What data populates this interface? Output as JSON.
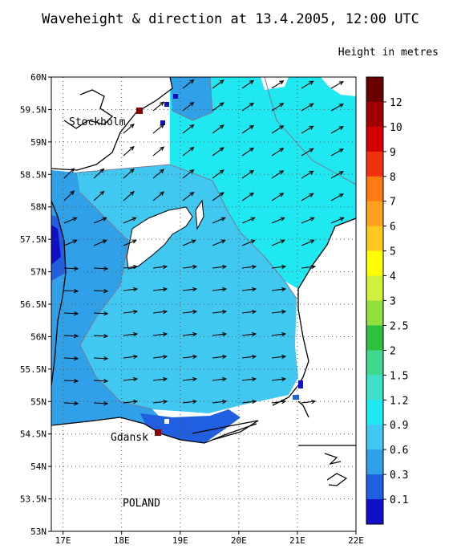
{
  "title": "Waveheight & direction at 13.4.2005, 12:00 UTC",
  "legend_title": "Height in metres",
  "map": {
    "lat_range": [
      53,
      60
    ],
    "lon_range": [
      16.8,
      22
    ],
    "lat_ticks": [
      "60N",
      "59.5N",
      "59N",
      "58.5N",
      "58N",
      "57.5N",
      "57N",
      "56.5N",
      "56N",
      "55.5N",
      "55N",
      "54.5N",
      "54N",
      "53.5N",
      "53N"
    ],
    "lon_ticks": [
      "17E",
      "18E",
      "19E",
      "20E",
      "21E",
      "22E"
    ],
    "places": [
      {
        "name": "Stockholm",
        "lon": 18.06,
        "lat": 59.33
      },
      {
        "name": "Gdansk",
        "lon": 18.65,
        "lat": 54.35
      },
      {
        "name": "POLAND",
        "lon": 18.4,
        "lat": 53.5
      }
    ],
    "wave_direction": "north-east to east",
    "colors": {
      "land": "#ffffff",
      "coast": "#000000",
      "grid": "#555555"
    }
  },
  "colorbar": {
    "labels": [
      "12",
      "10",
      "9",
      "8",
      "7",
      "6",
      "5",
      "4",
      "3",
      "2.5",
      "2",
      "1.5",
      "1.2",
      "0.9",
      "0.6",
      "0.3",
      "0.1"
    ],
    "colors": [
      "#6a0000",
      "#a00000",
      "#d40000",
      "#f03010",
      "#ff7a10",
      "#ffa020",
      "#ffc820",
      "#ffff00",
      "#d0f040",
      "#90e040",
      "#30c040",
      "#40d890",
      "#40e0c8",
      "#20e8f0",
      "#40c8f0",
      "#30a0e8",
      "#2060e0",
      "#1010c8"
    ]
  }
}
